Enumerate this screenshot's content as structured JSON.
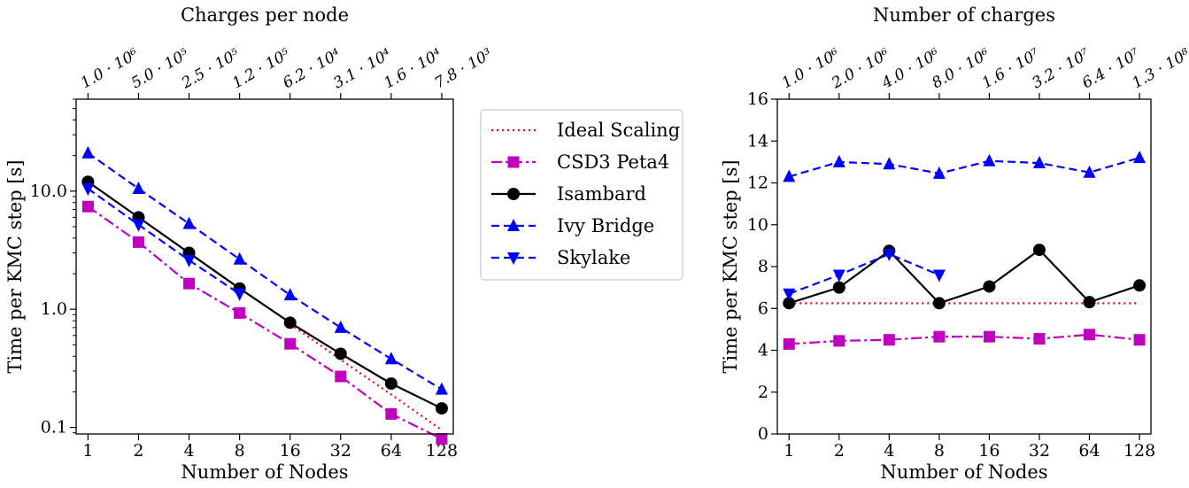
{
  "chart_data": [
    {
      "type": "line",
      "scale": "log-log",
      "xlabel": "Number of Nodes",
      "ylabel": "Time per KMC step [s]",
      "top_xlabel": "Charges per node",
      "x": [
        1,
        2,
        4,
        8,
        16,
        32,
        64,
        128
      ],
      "xtick_labels": [
        "1",
        "2",
        "4",
        "8",
        "16",
        "32",
        "64",
        "128"
      ],
      "top_xtick_labels": [
        "1.0 · 10⁶",
        "5.0 · 10⁵",
        "2.5 · 10⁵",
        "1.2 · 10⁵",
        "6.2 · 10⁴",
        "3.1 · 10⁴",
        "1.6 · 10⁴",
        "7.8 · 10³"
      ],
      "yticks": [
        0.1,
        1.0,
        10.0
      ],
      "ytick_labels": [
        "0.1",
        "1.0",
        "10.0"
      ],
      "ylim": [
        0.088,
        60
      ],
      "grid": false,
      "series": [
        {
          "name": "Ideal Scaling",
          "color": "#ff0000",
          "style": "dotted",
          "marker": "none",
          "x": [
            16,
            32,
            64,
            128
          ],
          "values": [
            0.75,
            0.375,
            0.19,
            0.095
          ]
        },
        {
          "name": "CSD3 Peta4",
          "color": "#bf00bf",
          "style": "dashdot",
          "marker": "square",
          "x": [
            1,
            2,
            4,
            8,
            16,
            32,
            64,
            128
          ],
          "values": [
            7.4,
            3.7,
            1.65,
            0.93,
            0.51,
            0.27,
            0.13,
            0.08
          ]
        },
        {
          "name": "Isambard",
          "color": "#000000",
          "style": "solid",
          "marker": "circle",
          "x": [
            1,
            2,
            4,
            8,
            16,
            32,
            64,
            128
          ],
          "values": [
            12.0,
            6.0,
            3.0,
            1.5,
            0.77,
            0.42,
            0.235,
            0.145
          ]
        },
        {
          "name": "Ivy Bridge",
          "color": "#0000ff",
          "style": "dashed",
          "marker": "triangle-up",
          "x": [
            1,
            2,
            4,
            8,
            16,
            32,
            64,
            128
          ],
          "values": [
            21.0,
            10.5,
            5.3,
            2.65,
            1.32,
            0.7,
            0.38,
            0.21
          ]
        },
        {
          "name": "Skylake",
          "color": "#0000ff",
          "style": "dashed",
          "marker": "triangle-down",
          "x": [
            1,
            2,
            4,
            8
          ],
          "values": [
            10.5,
            5.2,
            2.6,
            1.35
          ]
        }
      ]
    },
    {
      "type": "line",
      "scale": "log-x",
      "xlabel": "Number of Nodes",
      "ylabel": "Time per KMC step [s]",
      "top_xlabel": "Number of charges",
      "x": [
        1,
        2,
        4,
        8,
        16,
        32,
        64,
        128
      ],
      "xtick_labels": [
        "1",
        "2",
        "4",
        "8",
        "16",
        "32",
        "64",
        "128"
      ],
      "top_xtick_labels": [
        "1.0 · 10⁶",
        "2.0 · 10⁶",
        "4.0 · 10⁶",
        "8.0 · 10⁶",
        "1.6 · 10⁷",
        "3.2 · 10⁷",
        "6.4 · 10⁷",
        "1.3 · 10⁸"
      ],
      "yticks": [
        0,
        2,
        4,
        6,
        8,
        10,
        12,
        14,
        16
      ],
      "ytick_labels": [
        "0",
        "2",
        "4",
        "6",
        "8",
        "10",
        "12",
        "14",
        "16"
      ],
      "ylim": [
        0,
        16
      ],
      "grid": false,
      "series": [
        {
          "name": "Ideal Scaling",
          "color": "#ff0000",
          "style": "dotted",
          "marker": "none",
          "x": [
            1,
            128
          ],
          "values": [
            6.25,
            6.25
          ]
        },
        {
          "name": "CSD3 Peta4",
          "color": "#bf00bf",
          "style": "dashdot",
          "marker": "square",
          "x": [
            1,
            2,
            4,
            8,
            16,
            32,
            64,
            128
          ],
          "values": [
            4.3,
            4.45,
            4.5,
            4.65,
            4.65,
            4.55,
            4.75,
            4.5
          ]
        },
        {
          "name": "Isambard",
          "color": "#000000",
          "style": "solid",
          "marker": "circle",
          "x": [
            1,
            2,
            4,
            8,
            16,
            32,
            64,
            128
          ],
          "values": [
            6.25,
            7.0,
            8.75,
            6.25,
            7.05,
            8.8,
            6.3,
            7.1
          ]
        },
        {
          "name": "Ivy Bridge",
          "color": "#0000ff",
          "style": "dashed",
          "marker": "triangle-up",
          "x": [
            1,
            2,
            4,
            8,
            16,
            32,
            64,
            128
          ],
          "values": [
            12.3,
            13.0,
            12.9,
            12.45,
            13.05,
            12.95,
            12.5,
            13.2
          ]
        },
        {
          "name": "Skylake",
          "color": "#0000ff",
          "style": "dashed",
          "marker": "triangle-down",
          "x": [
            1,
            2,
            4,
            8
          ],
          "values": [
            6.7,
            7.6,
            8.6,
            7.6
          ]
        }
      ]
    }
  ],
  "legend": {
    "placement": "between panels",
    "entries": [
      "Ideal Scaling",
      "CSD3 Peta4",
      "Isambard",
      "Ivy Bridge",
      "Skylake"
    ]
  }
}
